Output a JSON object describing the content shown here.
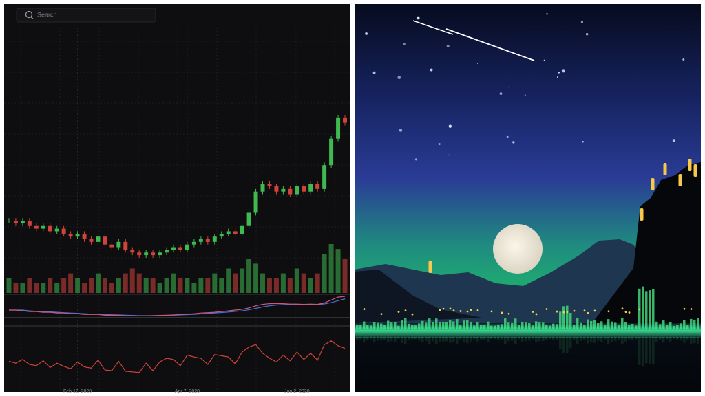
{
  "search": {
    "placeholder": "Search"
  },
  "chart_data": {
    "type": "candlestick",
    "open": [
      27,
      27,
      26,
      27,
      25,
      24,
      25,
      23,
      24,
      22,
      21,
      22,
      20,
      19,
      21,
      18,
      17,
      19,
      16,
      15,
      14,
      15,
      14,
      15,
      16,
      17,
      16,
      18,
      19,
      20,
      19,
      21,
      22,
      23,
      22,
      25,
      30,
      38,
      41,
      40,
      38,
      39,
      37,
      40,
      38,
      41,
      39,
      48,
      58,
      66
    ],
    "close": [
      27,
      26,
      27,
      25,
      24,
      25,
      23,
      24,
      22,
      21,
      22,
      20,
      19,
      21,
      18,
      17,
      19,
      16,
      15,
      14,
      15,
      14,
      15,
      16,
      17,
      16,
      18,
      19,
      20,
      19,
      21,
      22,
      23,
      22,
      25,
      30,
      38,
      41,
      40,
      38,
      39,
      37,
      40,
      38,
      41,
      39,
      48,
      58,
      66,
      64
    ],
    "high": [
      28,
      28,
      28,
      28,
      26,
      26,
      26,
      25,
      25,
      23,
      23,
      23,
      21,
      22,
      22,
      19,
      20,
      20,
      17,
      16,
      16,
      16,
      16,
      17,
      18,
      18,
      19,
      20,
      21,
      21,
      22,
      23,
      24,
      24,
      26,
      31,
      39,
      42,
      42,
      41,
      40,
      40,
      41,
      41,
      42,
      42,
      49,
      59,
      67,
      67
    ],
    "low": [
      26,
      25,
      25,
      24,
      23,
      23,
      22,
      22,
      21,
      20,
      20,
      19,
      18,
      18,
      17,
      16,
      16,
      15,
      14,
      13,
      13,
      13,
      13,
      14,
      15,
      15,
      15,
      17,
      18,
      18,
      18,
      20,
      21,
      21,
      21,
      24,
      29,
      37,
      39,
      37,
      37,
      36,
      36,
      37,
      37,
      38,
      38,
      47,
      57,
      63
    ],
    "volume": [
      3,
      2,
      2,
      3,
      2,
      2,
      3,
      2,
      3,
      4,
      3,
      2,
      3,
      4,
      3,
      2,
      3,
      4,
      5,
      4,
      3,
      3,
      2,
      3,
      4,
      3,
      3,
      2,
      3,
      3,
      4,
      3,
      5,
      4,
      5,
      7,
      6,
      4,
      3,
      3,
      4,
      3,
      5,
      4,
      3,
      4,
      8,
      10,
      9,
      7
    ],
    "osc_a": [
      0,
      0,
      -0.05,
      -0.1,
      -0.1,
      -0.15,
      -0.15,
      -0.2,
      -0.2,
      -0.25,
      -0.25,
      -0.3,
      -0.3,
      -0.3,
      -0.35,
      -0.35,
      -0.35,
      -0.4,
      -0.4,
      -0.4,
      -0.4,
      -0.38,
      -0.36,
      -0.35,
      -0.33,
      -0.3,
      -0.28,
      -0.25,
      -0.2,
      -0.18,
      -0.15,
      -0.1,
      -0.05,
      0,
      0.05,
      0.15,
      0.3,
      0.4,
      0.45,
      0.45,
      0.45,
      0.42,
      0.42,
      0.4,
      0.42,
      0.4,
      0.5,
      0.7,
      0.9,
      0.95
    ],
    "osc_b": [
      0,
      0,
      0,
      -0.05,
      -0.08,
      -0.1,
      -0.12,
      -0.15,
      -0.18,
      -0.2,
      -0.22,
      -0.25,
      -0.27,
      -0.28,
      -0.3,
      -0.32,
      -0.33,
      -0.35,
      -0.36,
      -0.38,
      -0.38,
      -0.38,
      -0.37,
      -0.36,
      -0.35,
      -0.33,
      -0.31,
      -0.29,
      -0.26,
      -0.23,
      -0.2,
      -0.17,
      -0.13,
      -0.09,
      -0.05,
      0.02,
      0.12,
      0.22,
      0.3,
      0.35,
      0.38,
      0.4,
      0.4,
      0.4,
      0.4,
      0.4,
      0.43,
      0.52,
      0.65,
      0.78
    ],
    "rsi": [
      45,
      42,
      48,
      40,
      38,
      46,
      35,
      42,
      37,
      33,
      44,
      36,
      34,
      47,
      31,
      30,
      45,
      29,
      28,
      27,
      42,
      30,
      44,
      50,
      48,
      38,
      55,
      52,
      50,
      40,
      56,
      54,
      52,
      41,
      60,
      68,
      72,
      58,
      50,
      44,
      55,
      46,
      60,
      48,
      58,
      47,
      72,
      78,
      70,
      66
    ],
    "ylim": [
      0,
      100
    ],
    "volume_ylim": [
      0,
      10
    ],
    "osc_ylim": [
      -1,
      1
    ],
    "rsi_ylim": [
      0,
      100
    ],
    "xticks": [
      {
        "value": 10,
        "label": "Feb 12, 2020"
      },
      {
        "value": 26,
        "label": "Apr 7, 2020"
      },
      {
        "value": 42,
        "label": "Jun 2, 2020"
      }
    ],
    "up_color": "#3fb950",
    "down_color": "#d0433a",
    "osc_a_color": "#c9587a",
    "osc_b_color": "#4a6fd8",
    "rsi_color": "#d0433a"
  }
}
